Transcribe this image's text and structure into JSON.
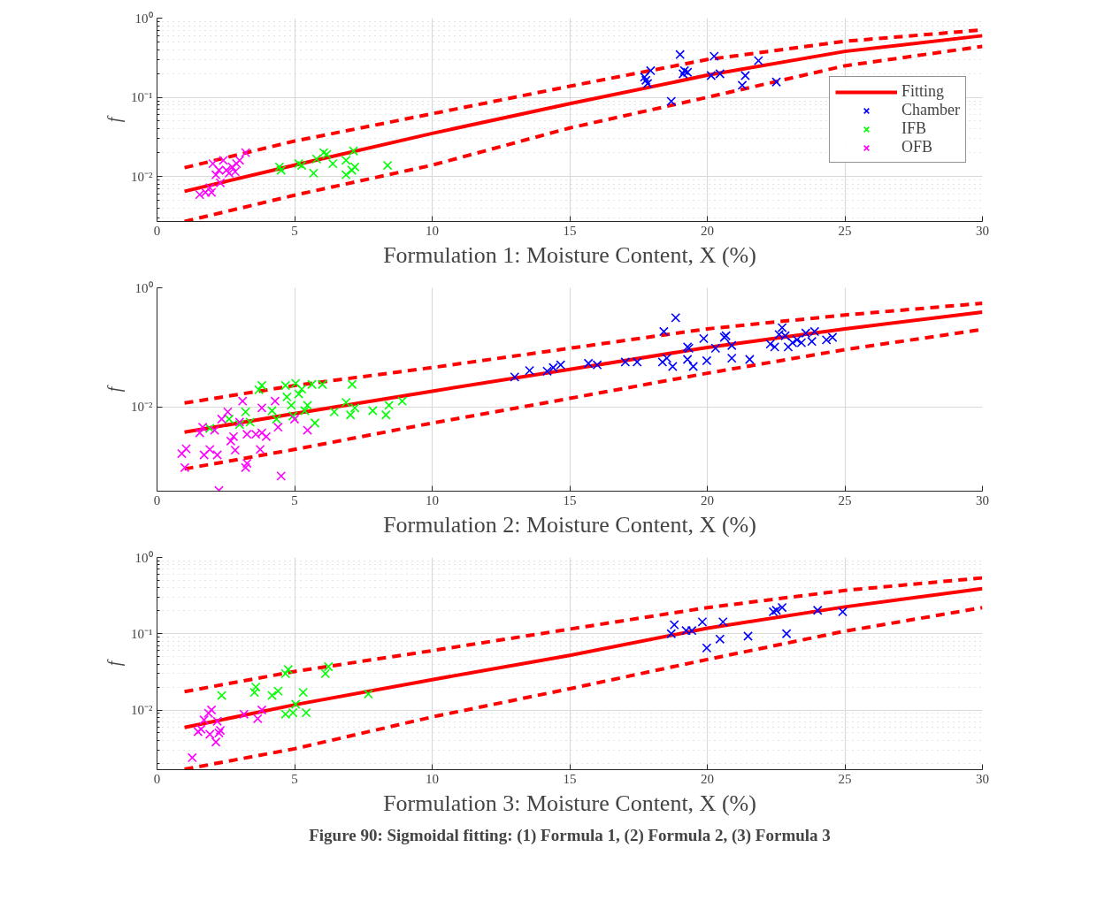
{
  "chart_data": [
    {
      "type": "scatter",
      "xlabel": "Formulation 1: Moisture Content, X (%)",
      "ylabel": "f",
      "log": "y",
      "grid": true,
      "legend": "right",
      "xlim": [
        0,
        30
      ],
      "xticks": [
        0,
        5,
        10,
        15,
        20,
        25,
        30
      ],
      "ylim": [
        0.0027,
        1
      ],
      "yticks": [
        {
          "value": 0.003,
          "label": null
        },
        {
          "value": 0.004,
          "label": null
        },
        {
          "value": 0.005,
          "label": null
        },
        {
          "value": 0.006,
          "label": null
        },
        {
          "value": 0.007,
          "label": null
        },
        {
          "value": 0.008,
          "label": null
        },
        {
          "value": 0.009,
          "label": null
        },
        {
          "value": 0.01,
          "label": "10⁻²"
        },
        {
          "value": 0.02,
          "label": null
        },
        {
          "value": 0.03,
          "label": null
        },
        {
          "value": 0.04,
          "label": null
        },
        {
          "value": 0.05,
          "label": null
        },
        {
          "value": 0.06,
          "label": null
        },
        {
          "value": 0.07,
          "label": null
        },
        {
          "value": 0.08,
          "label": null
        },
        {
          "value": 0.09,
          "label": null
        },
        {
          "value": 0.1,
          "label": "10⁻¹"
        },
        {
          "value": 0.2,
          "label": null
        },
        {
          "value": 0.3,
          "label": null
        },
        {
          "value": 0.4,
          "label": null
        },
        {
          "value": 0.5,
          "label": null
        },
        {
          "value": 0.6,
          "label": null
        },
        {
          "value": 0.7,
          "label": null
        },
        {
          "value": 0.8,
          "label": null
        },
        {
          "value": 0.9,
          "label": null
        },
        {
          "value": 1,
          "label": "10⁰"
        }
      ],
      "series": [
        {
          "name": "Fitting",
          "type": "line",
          "line_style": "solid",
          "color": "#ff0000",
          "x": [
            1,
            5,
            10,
            15,
            20,
            25,
            30
          ],
          "values": [
            0.0065,
            0.0139,
            0.035,
            0.083,
            0.19,
            0.38,
            0.6
          ]
        },
        {
          "type": "line",
          "line_style": "dashed",
          "color": "#ff0000",
          "x": [
            1,
            5,
            10,
            15,
            20,
            25,
            30
          ],
          "values": [
            0.0129,
            0.028,
            0.062,
            0.138,
            0.3,
            0.51,
            0.71
          ]
        },
        {
          "type": "line",
          "line_style": "dashed",
          "color": "#ff0000",
          "x": [
            1,
            5,
            10,
            15,
            20,
            25,
            30
          ],
          "values": [
            0.0027,
            0.0058,
            0.0139,
            0.041,
            0.1,
            0.25,
            0.44
          ]
        },
        {
          "name": "Chamber",
          "marker": "cross",
          "color": "#0000ff",
          "x": [
            17.77,
            17.94,
            17.83,
            17.72,
            19.01,
            19.12,
            19.17,
            19.28,
            18.69,
            20.25,
            20.14,
            20.46,
            21.38,
            21.27,
            21.86,
            22.51
          ],
          "values": [
            0.164,
            0.217,
            0.149,
            0.18,
            0.347,
            0.198,
            0.217,
            0.207,
            0.089,
            0.33,
            0.188,
            0.198,
            0.188,
            0.142,
            0.29,
            0.156
          ]
        },
        {
          "name": "IFB",
          "marker": "cross",
          "color": "#00ff00",
          "x": [
            4.45,
            4.51,
            5.15,
            5.26,
            5.69,
            5.8,
            6.06,
            6.17,
            6.39,
            6.87,
            7.14,
            6.87,
            7.19,
            7.08,
            8.38
          ],
          "values": [
            0.0132,
            0.012,
            0.0145,
            0.0138,
            0.011,
            0.0166,
            0.02,
            0.019,
            0.0145,
            0.016,
            0.021,
            0.0105,
            0.0132,
            0.012,
            0.0138
          ]
        },
        {
          "name": "OFB",
          "marker": "cross",
          "color": "#ff00ff",
          "x": [
            1.55,
            1.76,
            1.98,
            2.03,
            2.14,
            2.41,
            2.3,
            2.52,
            2.62,
            2.73,
            2.84,
            2.89,
            3.0,
            3.22,
            2.25,
            1.92
          ],
          "values": [
            0.0059,
            0.0063,
            0.0063,
            0.0145,
            0.0105,
            0.016,
            0.0083,
            0.012,
            0.011,
            0.0132,
            0.0115,
            0.0145,
            0.016,
            0.02,
            0.012,
            0.0072
          ]
        }
      ]
    },
    {
      "type": "scatter",
      "xlabel": "Formulation 2: Moisture Content, X (%)",
      "ylabel": "f",
      "log": "y",
      "grid": true,
      "xlim": [
        0,
        30
      ],
      "xticks": [
        0,
        5,
        10,
        15,
        20,
        25,
        30
      ],
      "ylim": [
        0.00039,
        1
      ],
      "yticks": [
        {
          "value": 0.01,
          "label": "10⁻²"
        },
        {
          "value": 1,
          "label": "10⁰"
        }
      ],
      "series": [
        {
          "type": "line",
          "line_style": "solid",
          "color": "#ff0000",
          "x": [
            1,
            5,
            10,
            15,
            20,
            25,
            30
          ],
          "values": [
            0.0038,
            0.0078,
            0.0185,
            0.043,
            0.1,
            0.205,
            0.39
          ]
        },
        {
          "type": "line",
          "line_style": "dashed",
          "color": "#ff0000",
          "x": [
            1,
            5,
            10,
            15,
            20,
            25,
            30
          ],
          "values": [
            0.0117,
            0.023,
            0.046,
            0.097,
            0.205,
            0.35,
            0.55
          ]
        },
        {
          "type": "line",
          "line_style": "dashed",
          "color": "#ff0000",
          "x": [
            1,
            5,
            10,
            15,
            20,
            25,
            30
          ],
          "values": [
            0.00092,
            0.00195,
            0.0054,
            0.014,
            0.037,
            0.092,
            0.2
          ]
        },
        {
          "marker": "cross",
          "color": "#0000ff",
          "x": [
            13.0,
            13.54,
            14.18,
            14.4,
            14.67,
            15.68,
            16.0,
            17.02,
            17.45,
            18.37,
            18.42,
            18.85,
            18.53,
            18.74,
            19.28,
            19.33,
            19.28,
            19.49,
            19.87,
            19.98,
            20.3,
            20.62,
            20.68,
            20.89,
            20.89,
            21.54,
            22.29,
            22.45,
            22.61,
            22.72,
            22.83,
            22.94,
            23.1,
            23.26,
            23.42,
            23.58,
            23.8,
            23.9,
            24.33,
            24.55
          ],
          "values": [
            0.032,
            0.041,
            0.04,
            0.046,
            0.051,
            0.054,
            0.051,
            0.057,
            0.057,
            0.057,
            0.185,
            0.315,
            0.066,
            0.048,
            0.102,
            0.097,
            0.063,
            0.048,
            0.141,
            0.06,
            0.097,
            0.148,
            0.157,
            0.108,
            0.066,
            0.063,
            0.114,
            0.102,
            0.165,
            0.215,
            0.157,
            0.102,
            0.12,
            0.134,
            0.12,
            0.174,
            0.126,
            0.185,
            0.134,
            0.148
          ]
        },
        {
          "marker": "cross",
          "color": "#00ff00",
          "x": [
            1.92,
            2.62,
            3.0,
            3.22,
            3.38,
            3.7,
            3.81,
            4.18,
            4.34,
            4.67,
            4.72,
            4.88,
            5.04,
            5.15,
            5.26,
            5.37,
            5.47,
            5.74,
            5.63,
            6.01,
            6.44,
            6.87,
            7.03,
            7.09,
            7.19,
            7.84,
            8.32,
            8.43,
            8.91,
            4.94
          ],
          "values": [
            0.0044,
            0.0063,
            0.0051,
            0.0083,
            0.0056,
            0.0195,
            0.023,
            0.0087,
            0.0063,
            0.023,
            0.0148,
            0.0107,
            0.025,
            0.0166,
            0.02,
            0.0087,
            0.0107,
            0.0054,
            0.024,
            0.024,
            0.0083,
            0.012,
            0.0074,
            0.024,
            0.0097,
            0.0087,
            0.0074,
            0.0107,
            0.0126,
            0.0071
          ]
        },
        {
          "marker": "cross",
          "color": "#ff00ff",
          "x": [
            0.9,
            1.06,
            1.01,
            1.55,
            1.66,
            1.71,
            1.92,
            2.19,
            2.25,
            2.35,
            2.57,
            2.68,
            2.84,
            2.78,
            3.11,
            3.22,
            3.27,
            3.27,
            3.59,
            3.75,
            3.81,
            3.81,
            3.97,
            4.29,
            4.4,
            4.51,
            5.0,
            5.47,
            2.09,
            3.0
          ],
          "values": [
            0.00166,
            0.002,
            0.00097,
            0.0037,
            0.0046,
            0.00158,
            0.00195,
            0.00158,
            0.0004,
            0.0063,
            0.0083,
            0.0027,
            0.0019,
            0.0032,
            0.0126,
            0.00097,
            0.00114,
            0.0035,
            0.0035,
            0.00195,
            0.0037,
            0.0097,
            0.0032,
            0.0126,
            0.0046,
            0.0007,
            0.0063,
            0.0041,
            0.0041,
            0.0056
          ]
        }
      ]
    },
    {
      "type": "scatter",
      "xlabel": "Formulation 3: Moisture Content, X (%)",
      "ylabel": "f",
      "log": "y",
      "grid": true,
      "annotations": [
        "Figure 90: Sigmoidal fitting: (1) Formula 1, (2) Formula 2, (3) Formula 3"
      ],
      "xlim": [
        0,
        30
      ],
      "xticks": [
        0,
        5,
        10,
        15,
        20,
        25,
        30
      ],
      "ylim": [
        0.00165,
        1
      ],
      "yticks": [
        {
          "value": 0.002,
          "label": null
        },
        {
          "value": 0.003,
          "label": null
        },
        {
          "value": 0.004,
          "label": null
        },
        {
          "value": 0.005,
          "label": null
        },
        {
          "value": 0.006,
          "label": null
        },
        {
          "value": 0.007,
          "label": null
        },
        {
          "value": 0.008,
          "label": null
        },
        {
          "value": 0.009,
          "label": null
        },
        {
          "value": 0.01,
          "label": "10⁻²"
        },
        {
          "value": 0.02,
          "label": null
        },
        {
          "value": 0.03,
          "label": null
        },
        {
          "value": 0.04,
          "label": null
        },
        {
          "value": 0.05,
          "label": null
        },
        {
          "value": 0.06,
          "label": null
        },
        {
          "value": 0.07,
          "label": null
        },
        {
          "value": 0.08,
          "label": null
        },
        {
          "value": 0.09,
          "label": null
        },
        {
          "value": 0.1,
          "label": "10⁻¹"
        },
        {
          "value": 0.2,
          "label": null
        },
        {
          "value": 0.3,
          "label": null
        },
        {
          "value": 0.4,
          "label": null
        },
        {
          "value": 0.5,
          "label": null
        },
        {
          "value": 0.6,
          "label": null
        },
        {
          "value": 0.7,
          "label": null
        },
        {
          "value": 0.8,
          "label": null
        },
        {
          "value": 0.9,
          "label": null
        },
        {
          "value": 1,
          "label": "10⁰"
        }
      ],
      "series": [
        {
          "type": "line",
          "line_style": "solid",
          "color": "#ff0000",
          "x": [
            1,
            5,
            10,
            15,
            20,
            25,
            30
          ],
          "values": [
            0.0059,
            0.0117,
            0.025,
            0.052,
            0.118,
            0.225,
            0.39
          ]
        },
        {
          "type": "line",
          "line_style": "dashed",
          "color": "#ff0000",
          "x": [
            1,
            5,
            10,
            15,
            20,
            25,
            30
          ],
          "values": [
            0.0174,
            0.032,
            0.06,
            0.115,
            0.22,
            0.37,
            0.54
          ]
        },
        {
          "type": "line",
          "line_style": "dashed",
          "color": "#ff0000",
          "x": [
            1,
            5,
            10,
            15,
            20,
            25,
            30
          ],
          "values": [
            0.00167,
            0.0031,
            0.0081,
            0.019,
            0.046,
            0.108,
            0.22
          ]
        },
        {
          "marker": "cross",
          "color": "#0000ff",
          "x": [
            18.8,
            18.69,
            19.23,
            19.44,
            19.82,
            19.98,
            20.46,
            20.57,
            21.48,
            22.4,
            22.51,
            22.72,
            22.88,
            24.01,
            24.92
          ],
          "values": [
            0.131,
            0.1,
            0.11,
            0.11,
            0.143,
            0.065,
            0.085,
            0.143,
            0.093,
            0.194,
            0.203,
            0.221,
            0.1,
            0.203,
            0.194
          ]
        },
        {
          "marker": "cross",
          "color": "#00ff00",
          "x": [
            2.35,
            3.54,
            3.59,
            4.18,
            4.4,
            4.67,
            4.77,
            4.67,
            4.94,
            5.04,
            5.31,
            5.42,
            6.12,
            6.23,
            7.68
          ],
          "values": [
            0.0155,
            0.017,
            0.02,
            0.0155,
            0.0177,
            0.03,
            0.034,
            0.0088,
            0.0092,
            0.0119,
            0.017,
            0.0092,
            0.03,
            0.037,
            0.0162
          ]
        },
        {
          "marker": "cross",
          "color": "#ff00ff",
          "x": [
            1.28,
            1.49,
            1.6,
            1.71,
            1.87,
            1.98,
            1.92,
            2.14,
            2.19,
            2.25,
            2.3,
            3.16,
            3.66,
            3.81
          ],
          "values": [
            0.00237,
            0.0052,
            0.0056,
            0.0074,
            0.0091,
            0.01,
            0.0048,
            0.0038,
            0.0071,
            0.005,
            0.0054,
            0.0088,
            0.0077,
            0.01
          ]
        }
      ]
    }
  ]
}
